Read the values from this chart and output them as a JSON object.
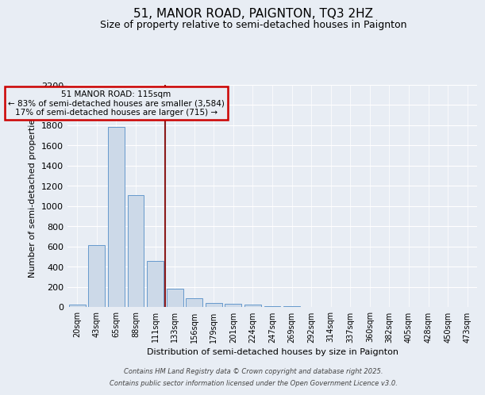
{
  "title": "51, MANOR ROAD, PAIGNTON, TQ3 2HZ",
  "subtitle": "Size of property relative to semi-detached houses in Paignton",
  "xlabel": "Distribution of semi-detached houses by size in Paignton",
  "ylabel": "Number of semi-detached properties",
  "bar_color": "#ccd9e8",
  "bar_edge_color": "#6699cc",
  "annotation_box_color": "#cc0000",
  "vline_color": "#8B1A1A",
  "annotation_title": "51 MANOR ROAD: 115sqm",
  "annotation_line1": "← 83% of semi-detached houses are smaller (3,584)",
  "annotation_line2": "17% of semi-detached houses are larger (715) →",
  "categories": [
    "20sqm",
    "43sqm",
    "65sqm",
    "88sqm",
    "111sqm",
    "133sqm",
    "156sqm",
    "179sqm",
    "201sqm",
    "224sqm",
    "247sqm",
    "269sqm",
    "292sqm",
    "314sqm",
    "337sqm",
    "360sqm",
    "382sqm",
    "405sqm",
    "428sqm",
    "450sqm",
    "473sqm"
  ],
  "values": [
    25,
    615,
    1780,
    1110,
    455,
    180,
    90,
    40,
    35,
    20,
    10,
    5,
    3,
    0,
    0,
    0,
    0,
    0,
    0,
    0,
    0
  ],
  "ylim": [
    0,
    2200
  ],
  "yticks": [
    0,
    200,
    400,
    600,
    800,
    1000,
    1200,
    1400,
    1600,
    1800,
    2000,
    2200
  ],
  "footer1": "Contains HM Land Registry data © Crown copyright and database right 2025.",
  "footer2": "Contains public sector information licensed under the Open Government Licence v3.0.",
  "background_color": "#e8edf4",
  "grid_color": "#ffffff",
  "title_fontsize": 11,
  "subtitle_fontsize": 9
}
